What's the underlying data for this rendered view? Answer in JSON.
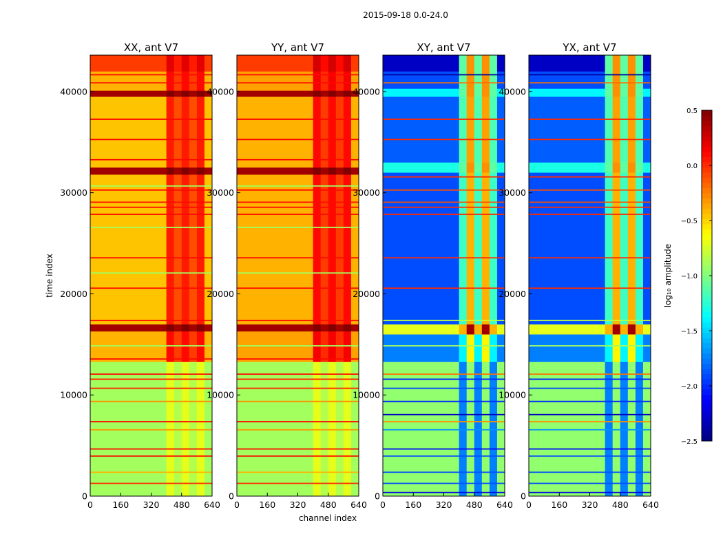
{
  "chart_data": {
    "type": "heatmap",
    "title": "2015-09-18 0.0-24.0",
    "xlabel": "channel index",
    "ylabel": "time index",
    "xlim": [
      0,
      640
    ],
    "ylim": [
      0,
      43600
    ],
    "xticks": [
      "0",
      "160",
      "320",
      "480",
      "640"
    ],
    "xtick_values": [
      0,
      160,
      320,
      480,
      640
    ],
    "yticks": [
      "0",
      "10000",
      "20000",
      "30000",
      "40000"
    ],
    "ytick_values": [
      0,
      10000,
      20000,
      30000,
      40000
    ],
    "colorbar": {
      "label": "log₁₀ amplitude",
      "range": [
        -2.5,
        0.5
      ],
      "ticks": [
        "0.5",
        "0.0",
        "−0.5",
        "−1.0",
        "−1.5",
        "−2.0",
        "−2.5"
      ],
      "tick_values": [
        0.5,
        0.0,
        -0.5,
        -1.0,
        -1.5,
        -2.0,
        -2.5
      ],
      "colormap": "jet"
    },
    "panels": [
      {
        "title": "XX, ant V7",
        "bands": [
          [
            0,
            13300,
            -0.9,
            -0.85
          ],
          [
            13300,
            16300,
            -0.4,
            -0.05
          ],
          [
            16300,
            17000,
            0.4,
            0.4
          ],
          [
            17000,
            31800,
            -0.45,
            -0.1
          ],
          [
            31800,
            32500,
            0.4,
            0.4
          ],
          [
            32500,
            39500,
            -0.45,
            -0.1
          ],
          [
            39500,
            40100,
            0.4,
            0.4
          ],
          [
            40100,
            42000,
            -0.4,
            -0.05
          ],
          [
            42000,
            43600,
            -0.05,
            0.05
          ]
        ],
        "lines": [
          [
            1200,
            0.0
          ],
          [
            2300,
            -0.4
          ],
          [
            3900,
            0.1
          ],
          [
            4600,
            0.1
          ],
          [
            6500,
            -0.3
          ],
          [
            7300,
            0.1
          ],
          [
            9300,
            -0.3
          ],
          [
            10600,
            0.0
          ],
          [
            11500,
            0.0
          ],
          [
            12000,
            0.1
          ],
          [
            13500,
            0.1
          ],
          [
            14800,
            -0.9
          ],
          [
            17300,
            0.1
          ],
          [
            20500,
            0.1
          ],
          [
            22000,
            -0.9
          ],
          [
            23500,
            0.1
          ],
          [
            26500,
            -0.9
          ],
          [
            27800,
            0.1
          ],
          [
            28500,
            0.1
          ],
          [
            29000,
            0.1
          ],
          [
            30200,
            0.1
          ],
          [
            30600,
            -0.9
          ],
          [
            33200,
            0.1
          ],
          [
            35200,
            0.1
          ],
          [
            37200,
            0.1
          ],
          [
            40800,
            0.1
          ],
          [
            41600,
            0.1
          ]
        ]
      },
      {
        "title": "YY, ant V7",
        "bands": [
          [
            0,
            13300,
            -0.9,
            -0.85
          ],
          [
            13300,
            16300,
            -0.35,
            0.0
          ],
          [
            16300,
            17000,
            0.4,
            0.4
          ],
          [
            17000,
            31800,
            -0.4,
            -0.05
          ],
          [
            31800,
            32500,
            0.4,
            0.4
          ],
          [
            32500,
            39500,
            -0.4,
            -0.05
          ],
          [
            39500,
            40100,
            0.4,
            0.4
          ],
          [
            40100,
            42000,
            -0.35,
            0.0
          ],
          [
            42000,
            43600,
            -0.05,
            0.1
          ]
        ],
        "lines": [
          [
            1200,
            0.0
          ],
          [
            2300,
            -0.4
          ],
          [
            3900,
            0.1
          ],
          [
            4600,
            0.1
          ],
          [
            6500,
            -0.3
          ],
          [
            7300,
            0.1
          ],
          [
            9300,
            -0.3
          ],
          [
            10600,
            0.0
          ],
          [
            11500,
            0.0
          ],
          [
            12000,
            0.1
          ],
          [
            13500,
            0.1
          ],
          [
            14800,
            -0.9
          ],
          [
            17300,
            0.1
          ],
          [
            20500,
            0.1
          ],
          [
            22000,
            -0.9
          ],
          [
            23500,
            0.1
          ],
          [
            26500,
            -0.9
          ],
          [
            27800,
            0.1
          ],
          [
            28500,
            0.1
          ],
          [
            29000,
            0.1
          ],
          [
            30200,
            0.1
          ],
          [
            30600,
            -0.9
          ],
          [
            33200,
            0.1
          ],
          [
            35200,
            0.1
          ],
          [
            37200,
            0.1
          ],
          [
            40800,
            0.1
          ],
          [
            41600,
            0.1
          ]
        ]
      },
      {
        "title": "XY, ant V7",
        "bands": [
          [
            0,
            13300,
            -0.95,
            -0.95
          ],
          [
            13300,
            16000,
            -1.75,
            -0.6
          ],
          [
            16000,
            17000,
            -0.7,
            0.4
          ],
          [
            17000,
            32000,
            -1.9,
            -0.4
          ],
          [
            32000,
            33000,
            -1.3,
            -0.3
          ],
          [
            33000,
            39500,
            -1.85,
            -0.35
          ],
          [
            39500,
            40300,
            -1.4,
            -0.3
          ],
          [
            40300,
            42000,
            -1.9,
            -0.3
          ],
          [
            42000,
            43600,
            -2.3,
            -0.3
          ]
        ],
        "lines": [
          [
            300,
            -2.2
          ],
          [
            1200,
            -1.9
          ],
          [
            2300,
            -1.9
          ],
          [
            3900,
            -1.9
          ],
          [
            4600,
            -2.1
          ],
          [
            6500,
            -1.7
          ],
          [
            7300,
            -0.3
          ],
          [
            8000,
            -2.3
          ],
          [
            9300,
            -2.0
          ],
          [
            10600,
            -1.9
          ],
          [
            11500,
            -2.0
          ],
          [
            12000,
            -0.2
          ],
          [
            14800,
            -0.9
          ],
          [
            17300,
            -0.8
          ],
          [
            20500,
            0.0
          ],
          [
            23500,
            0.0
          ],
          [
            27800,
            0.0
          ],
          [
            28500,
            0.0
          ],
          [
            29000,
            -0.1
          ],
          [
            30200,
            -0.1
          ],
          [
            31500,
            0.0
          ],
          [
            35200,
            0.0
          ],
          [
            37200,
            0.0
          ],
          [
            40800,
            -0.2
          ],
          [
            41600,
            -2.4
          ]
        ]
      },
      {
        "title": "YX, ant V7",
        "bands": [
          [
            0,
            13300,
            -0.95,
            -0.95
          ],
          [
            13300,
            16000,
            -1.75,
            -0.6
          ],
          [
            16000,
            17000,
            -0.7,
            0.4
          ],
          [
            17000,
            32000,
            -1.9,
            -0.4
          ],
          [
            32000,
            33000,
            -1.3,
            -0.3
          ],
          [
            33000,
            39500,
            -1.85,
            -0.35
          ],
          [
            39500,
            40300,
            -1.4,
            -0.3
          ],
          [
            40300,
            42000,
            -1.9,
            -0.3
          ],
          [
            42000,
            43600,
            -2.3,
            -0.3
          ]
        ],
        "lines": [
          [
            300,
            -2.2
          ],
          [
            1200,
            -1.9
          ],
          [
            2300,
            -1.9
          ],
          [
            3900,
            -1.9
          ],
          [
            4600,
            -2.1
          ],
          [
            6500,
            -1.7
          ],
          [
            7300,
            -0.3
          ],
          [
            8000,
            -2.3
          ],
          [
            9300,
            -2.0
          ],
          [
            10600,
            -1.9
          ],
          [
            11500,
            -2.0
          ],
          [
            12000,
            -0.2
          ],
          [
            14800,
            -0.9
          ],
          [
            17300,
            -0.8
          ],
          [
            20500,
            0.0
          ],
          [
            23500,
            0.0
          ],
          [
            27800,
            0.0
          ],
          [
            28500,
            0.0
          ],
          [
            29000,
            -0.1
          ],
          [
            30200,
            -0.1
          ],
          [
            31500,
            0.0
          ],
          [
            35200,
            0.0
          ],
          [
            37200,
            0.0
          ],
          [
            40800,
            -0.2
          ],
          [
            41600,
            -2.4
          ]
        ]
      }
    ]
  }
}
